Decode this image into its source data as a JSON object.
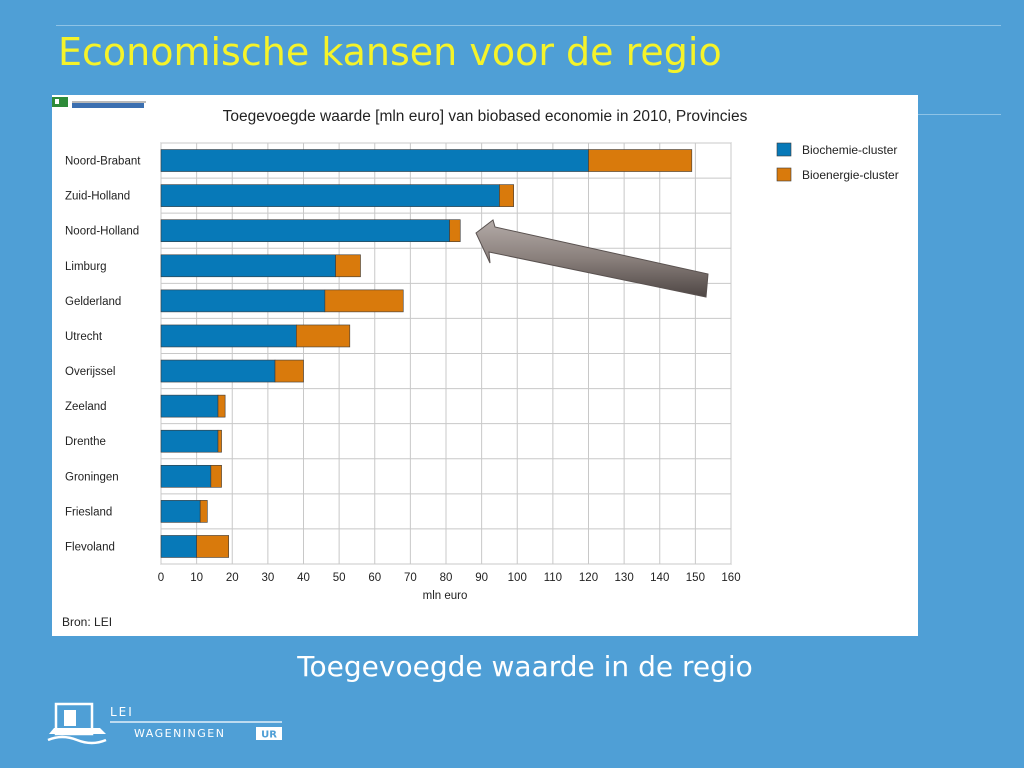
{
  "slide": {
    "title": "Economische kansen voor de regio",
    "caption": "Toegevoegde waarde in de regio"
  },
  "chart_data": {
    "type": "bar",
    "orientation": "horizontal",
    "stacked": true,
    "title": "Toegevoegde waarde [mln euro] van biobased economie in 2010, Provincies",
    "xlabel": "mln euro",
    "ylabel": "",
    "xlim": [
      0,
      160
    ],
    "xticks": [
      0,
      10,
      20,
      30,
      40,
      50,
      60,
      70,
      80,
      90,
      100,
      110,
      120,
      130,
      140,
      150,
      160
    ],
    "grid": true,
    "legend_position": "top-right",
    "categories": [
      "Noord-Brabant",
      "Zuid-Holland",
      "Noord-Holland",
      "Limburg",
      "Gelderland",
      "Utrecht",
      "Overijssel",
      "Zeeland",
      "Drenthe",
      "Groningen",
      "Friesland",
      "Flevoland"
    ],
    "series": [
      {
        "name": "Biochemie-cluster",
        "color": "#0779b8",
        "values": [
          120,
          95,
          81,
          49,
          46,
          38,
          32,
          16,
          16,
          14,
          11,
          10
        ]
      },
      {
        "name": "Bioenergie-cluster",
        "color": "#d97a0c",
        "values": [
          29,
          4,
          3,
          7,
          22,
          15,
          8,
          2,
          1,
          3,
          2,
          9
        ]
      }
    ],
    "annotation": "arrow pointing to Noord-Holland",
    "source": "Bron: LEI"
  },
  "logo": {
    "top": "LEI",
    "bottom": "WAGENINGEN",
    "badge": "UR"
  },
  "colors": {
    "background": "#4f9fd6",
    "title": "#f5f32a",
    "biochemie": "#0779b8",
    "bioenergie": "#d97a0c"
  }
}
